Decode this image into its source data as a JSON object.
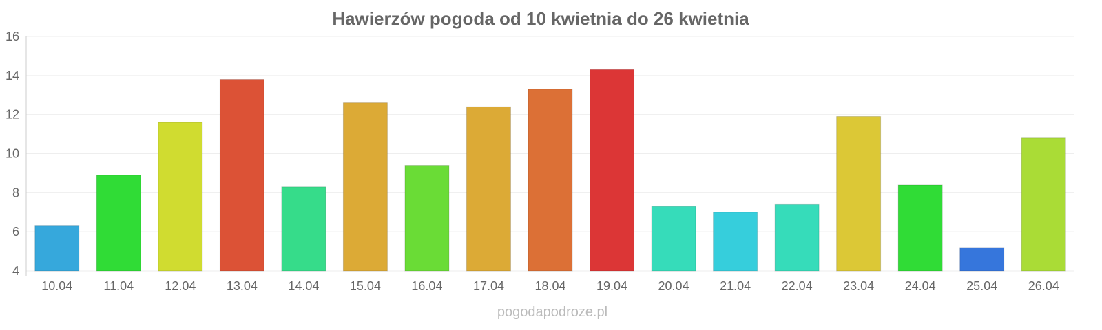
{
  "chart_data": {
    "type": "bar",
    "title": "Hawierzów pogoda od 10 kwietnia do 26 kwietnia",
    "xlabel": "",
    "ylabel": "",
    "ylim": [
      4,
      16
    ],
    "yticks": [
      "4",
      "6",
      "8",
      "10",
      "12",
      "14",
      "16"
    ],
    "grid": true,
    "categories": [
      "10.04",
      "11.04",
      "12.04",
      "13.04",
      "14.04",
      "15.04",
      "16.04",
      "17.04",
      "18.04",
      "19.04",
      "20.04",
      "21.04",
      "22.04",
      "23.04",
      "24.04",
      "25.04",
      "26.04"
    ],
    "values": [
      6.3,
      8.9,
      11.6,
      13.8,
      8.3,
      12.6,
      9.4,
      12.4,
      13.3,
      14.3,
      7.3,
      7.0,
      7.4,
      11.9,
      8.4,
      5.2,
      10.8
    ],
    "colors": [
      "#36a8dc",
      "#30dc36",
      "#d0dc30",
      "#dc5236",
      "#36dc8a",
      "#dcaa36",
      "#6adc36",
      "#dcaa36",
      "#dc7036",
      "#dc3636",
      "#36dcba",
      "#36cedc",
      "#36dcba",
      "#dcc836",
      "#30dc36",
      "#3676dc",
      "#aadc36"
    ]
  },
  "watermark": "pogodapodroze.pl"
}
